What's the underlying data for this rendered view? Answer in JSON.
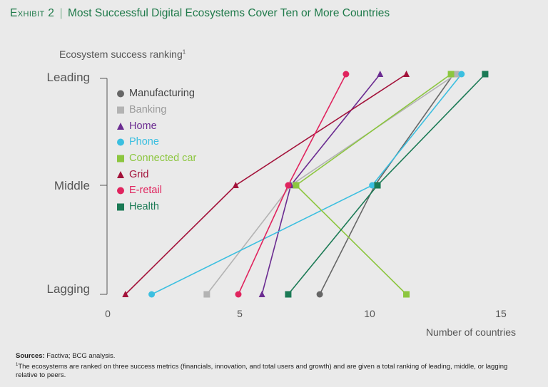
{
  "header": {
    "exhibit": "Exhibit 2",
    "separator": "|",
    "title": "Most Successful Digital Ecosystems Cover Ten or More Countries"
  },
  "footer": {
    "sources_label": "Sources:",
    "sources_text": "Factiva; BCG analysis.",
    "note_marker": "1",
    "note_text": "The ecosystems are ranked on three success metrics (financials, innovation, and total users and growth) and are given a total ranking of leading, middle, or lagging relative to peers."
  },
  "chart_data": {
    "type": "line",
    "ylabel": "Ecosystem success ranking",
    "ylabel_marker": "1",
    "xlabel": "Number of countries",
    "categories_y": [
      "Lagging",
      "Middle",
      "Leading"
    ],
    "xlim": [
      0,
      15
    ],
    "xticks": [
      "0",
      "5",
      "10",
      "15"
    ],
    "series": [
      {
        "name": "Manufacturing",
        "color": "#666666",
        "marker": "circle",
        "points": [
          [
            8.1,
            0
          ],
          [
            10.2,
            1
          ],
          [
            13.2,
            2
          ]
        ]
      },
      {
        "name": "Banking",
        "color": "#b3b3b3",
        "marker": "square",
        "points": [
          [
            3.8,
            0
          ],
          [
            7.0,
            1
          ],
          [
            13.3,
            2
          ]
        ]
      },
      {
        "name": "Home",
        "color": "#6b2c91",
        "marker": "triangle",
        "points": [
          [
            5.9,
            0
          ],
          [
            7.0,
            1
          ],
          [
            10.4,
            2
          ]
        ]
      },
      {
        "name": "Phone",
        "color": "#3bbfe0",
        "marker": "circle",
        "points": [
          [
            1.7,
            0
          ],
          [
            10.1,
            1
          ],
          [
            13.5,
            2
          ]
        ]
      },
      {
        "name": "Connected car",
        "color": "#8cc63f",
        "marker": "square",
        "points": [
          [
            11.4,
            0
          ],
          [
            7.2,
            1
          ],
          [
            13.1,
            2
          ]
        ]
      },
      {
        "name": "Grid",
        "color": "#a3123a",
        "marker": "triangle",
        "points": [
          [
            0.7,
            0
          ],
          [
            4.9,
            1
          ],
          [
            11.4,
            2
          ]
        ]
      },
      {
        "name": "E-retail",
        "color": "#e0245e",
        "marker": "circle",
        "points": [
          [
            5.0,
            0
          ],
          [
            6.9,
            1
          ],
          [
            9.1,
            2
          ]
        ]
      },
      {
        "name": "Health",
        "color": "#1b7a55",
        "marker": "square",
        "points": [
          [
            6.9,
            0
          ],
          [
            10.3,
            1
          ],
          [
            14.4,
            2
          ]
        ]
      }
    ]
  }
}
